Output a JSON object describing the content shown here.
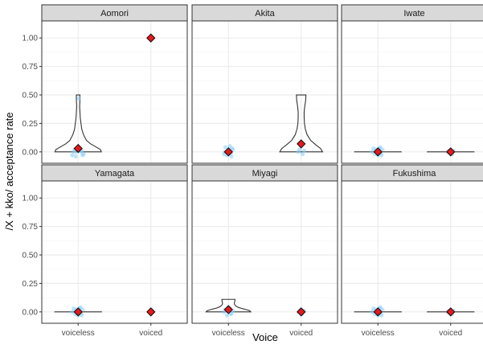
{
  "chart_data": {
    "type": "violin",
    "ylabel": "/X + kko/ acceptance rate",
    "xlabel": "Voice",
    "categories": [
      "voiceless",
      "voiced"
    ],
    "ylim": [
      -0.1,
      1.15
    ],
    "yticks": [
      0.0,
      0.25,
      0.5,
      0.75,
      1.0
    ],
    "ytick_labels": [
      "0.00",
      "0.25",
      "0.50",
      "0.75",
      "1.00"
    ],
    "grid": true,
    "colors": {
      "panel_bg": "#ffffff",
      "strip_bg": "#d9d9d9",
      "grid_major": "#ebebeb",
      "grid_minor": "#f5f5f5",
      "violin_stroke": "#333333",
      "points": "#87cefa",
      "mean_marker": "#e41a1c"
    },
    "panels": [
      {
        "name": "Aomori",
        "groups": [
          {
            "category": "voiceless",
            "mean": 0.03,
            "violin": [
              [
                0.0,
                0.78
              ],
              [
                0.02,
                0.75
              ],
              [
                0.04,
                0.62
              ],
              [
                0.07,
                0.42
              ],
              [
                0.1,
                0.28
              ],
              [
                0.15,
                0.18
              ],
              [
                0.2,
                0.12
              ],
              [
                0.3,
                0.07
              ],
              [
                0.4,
                0.05
              ],
              [
                0.45,
                0.06
              ],
              [
                0.5,
                0.06
              ]
            ],
            "points": [
              [
                0.02,
                0.47
              ],
              [
                -0.05,
                0.0
              ],
              [
                -0.15,
                0.0
              ],
              [
                -0.2,
                -0.03
              ],
              [
                -0.08,
                -0.04
              ],
              [
                0.1,
                0.0
              ],
              [
                0.15,
                -0.03
              ],
              [
                0.05,
                0.02
              ],
              [
                -0.02,
                0.03
              ],
              [
                0.12,
                0.01
              ],
              [
                0.18,
                -0.02
              ],
              [
                -0.12,
                0.02
              ]
            ]
          },
          {
            "category": "voiced",
            "mean": 1.0,
            "violin": [],
            "points": []
          }
        ]
      },
      {
        "name": "Akita",
        "groups": [
          {
            "category": "voiceless",
            "mean": 0.0,
            "violin": [],
            "points": [
              [
                -0.1,
                0.04
              ],
              [
                0.05,
                0.05
              ],
              [
                0.12,
                0.03
              ],
              [
                -0.15,
                -0.02
              ],
              [
                -0.05,
                -0.03
              ],
              [
                0.08,
                -0.01
              ],
              [
                0.15,
                0.02
              ],
              [
                -0.12,
                0.0
              ],
              [
                0.0,
                0.02
              ],
              [
                0.1,
                -0.04
              ]
            ]
          },
          {
            "category": "voiced",
            "mean": 0.07,
            "violin": [
              [
                0.0,
                0.72
              ],
              [
                0.03,
                0.65
              ],
              [
                0.06,
                0.5
              ],
              [
                0.1,
                0.32
              ],
              [
                0.15,
                0.2
              ],
              [
                0.2,
                0.14
              ],
              [
                0.25,
                0.11
              ],
              [
                0.3,
                0.1
              ],
              [
                0.35,
                0.1
              ],
              [
                0.4,
                0.12
              ],
              [
                0.45,
                0.15
              ],
              [
                0.5,
                0.16
              ]
            ],
            "points": [
              [
                -0.1,
                0.0
              ],
              [
                0.05,
                -0.02
              ],
              [
                0.1,
                0.01
              ],
              [
                -0.05,
                0.02
              ]
            ]
          }
        ]
      },
      {
        "name": "Iwate",
        "groups": [
          {
            "category": "voiceless",
            "mean": 0.0,
            "violin": [
              [
                0.0,
                0.8
              ]
            ],
            "points": [
              [
                -0.15,
                0.03
              ],
              [
                -0.1,
                -0.02
              ],
              [
                -0.05,
                0.02
              ],
              [
                0.0,
                -0.03
              ],
              [
                0.05,
                0.03
              ],
              [
                0.1,
                -0.01
              ],
              [
                0.15,
                0.02
              ],
              [
                -0.2,
                0.0
              ],
              [
                0.08,
                0.04
              ],
              [
                -0.08,
                0.01
              ],
              [
                0.12,
                -0.03
              ],
              [
                0.02,
                0.0
              ]
            ]
          },
          {
            "category": "voiced",
            "mean": 0.0,
            "violin": [
              [
                0.0,
                0.8
              ]
            ],
            "points": [
              [
                -0.1,
                0.0
              ],
              [
                0.05,
                -0.02
              ],
              [
                0.1,
                0.01
              ],
              [
                -0.05,
                0.01
              ]
            ]
          }
        ]
      },
      {
        "name": "Yamagata",
        "groups": [
          {
            "category": "voiceless",
            "mean": 0.0,
            "violin": [
              [
                0.0,
                0.8
              ]
            ],
            "points": [
              [
                -0.15,
                0.03
              ],
              [
                -0.1,
                -0.02
              ],
              [
                -0.05,
                0.02
              ],
              [
                0.0,
                -0.03
              ],
              [
                0.05,
                0.03
              ],
              [
                0.1,
                -0.01
              ],
              [
                0.15,
                0.02
              ],
              [
                -0.2,
                0.0
              ],
              [
                0.08,
                0.04
              ],
              [
                -0.08,
                0.01
              ],
              [
                0.12,
                -0.03
              ],
              [
                0.02,
                0.0
              ]
            ]
          },
          {
            "category": "voiced",
            "mean": 0.0,
            "violin": [],
            "points": [
              [
                -0.05,
                0.0
              ],
              [
                0.05,
                0.01
              ]
            ]
          }
        ]
      },
      {
        "name": "Miyagi",
        "groups": [
          {
            "category": "voiceless",
            "mean": 0.02,
            "violin": [
              [
                0.0,
                0.75
              ],
              [
                0.01,
                0.72
              ],
              [
                0.02,
                0.6
              ],
              [
                0.03,
                0.45
              ],
              [
                0.04,
                0.33
              ],
              [
                0.05,
                0.26
              ],
              [
                0.06,
                0.22
              ],
              [
                0.07,
                0.2
              ],
              [
                0.08,
                0.2
              ],
              [
                0.09,
                0.21
              ],
              [
                0.1,
                0.22
              ],
              [
                0.11,
                0.22
              ]
            ],
            "points": [
              [
                -0.1,
                0.02
              ],
              [
                0.05,
                0.03
              ],
              [
                0.1,
                -0.01
              ],
              [
                -0.05,
                -0.03
              ],
              [
                0.0,
                0.04
              ],
              [
                0.15,
                0.01
              ],
              [
                -0.15,
                0.0
              ],
              [
                0.08,
                -0.02
              ],
              [
                -0.02,
                0.01
              ]
            ]
          },
          {
            "category": "voiced",
            "mean": 0.0,
            "violin": [],
            "points": [
              [
                -0.08,
                0.0
              ],
              [
                0.02,
                -0.02
              ],
              [
                0.1,
                0.01
              ],
              [
                -0.02,
                0.02
              ]
            ]
          }
        ]
      },
      {
        "name": "Fukushima",
        "groups": [
          {
            "category": "voiceless",
            "mean": 0.0,
            "violin": [
              [
                0.0,
                0.8
              ]
            ],
            "points": [
              [
                -0.15,
                0.03
              ],
              [
                -0.1,
                -0.02
              ],
              [
                -0.05,
                0.02
              ],
              [
                0.0,
                -0.03
              ],
              [
                0.05,
                0.03
              ],
              [
                0.1,
                -0.01
              ],
              [
                0.15,
                0.02
              ],
              [
                -0.2,
                0.0
              ],
              [
                0.08,
                0.04
              ],
              [
                -0.08,
                0.01
              ],
              [
                0.12,
                -0.03
              ],
              [
                0.02,
                0.0
              ]
            ]
          },
          {
            "category": "voiced",
            "mean": 0.0,
            "violin": [
              [
                0.0,
                0.8
              ]
            ],
            "points": [
              [
                -0.1,
                0.0
              ],
              [
                0.05,
                -0.02
              ],
              [
                0.1,
                0.01
              ],
              [
                -0.05,
                0.01
              ]
            ]
          }
        ]
      }
    ]
  }
}
